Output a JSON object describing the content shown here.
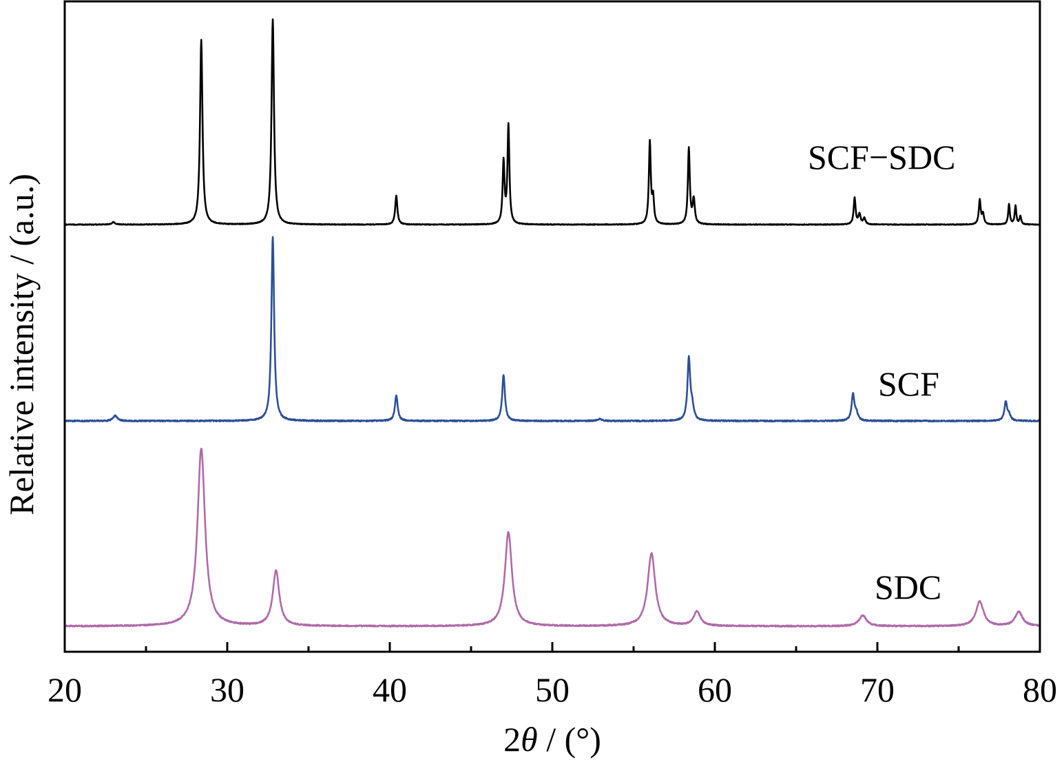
{
  "chart_data": {
    "type": "line",
    "xlabel_prefix": "2",
    "xlabel_theta": "θ",
    "xlabel_suffix": " / (°)",
    "ylabel": "Relative intensity / (a.u.)",
    "xlim": [
      20,
      80
    ],
    "x_ticks": [
      "20",
      "30",
      "40",
      "50",
      "60",
      "70",
      "80"
    ],
    "y_ticks_shown": false,
    "grid": false,
    "legend": "inline labels beside each trace",
    "series": [
      {
        "name": "SCF−SDC",
        "color": "#000000",
        "peaks": [
          {
            "x": 23.0,
            "h": 0.012,
            "w": 0.12
          },
          {
            "x": 28.4,
            "h": 0.9,
            "w": 0.09
          },
          {
            "x": 32.8,
            "h": 1.0,
            "w": 0.09
          },
          {
            "x": 40.4,
            "h": 0.14,
            "w": 0.08
          },
          {
            "x": 47.0,
            "h": 0.3,
            "w": 0.07
          },
          {
            "x": 47.3,
            "h": 0.48,
            "w": 0.07
          },
          {
            "x": 56.0,
            "h": 0.4,
            "w": 0.07
          },
          {
            "x": 56.2,
            "h": 0.12,
            "w": 0.07
          },
          {
            "x": 58.4,
            "h": 0.37,
            "w": 0.07
          },
          {
            "x": 58.7,
            "h": 0.12,
            "w": 0.08
          },
          {
            "x": 68.6,
            "h": 0.13,
            "w": 0.07
          },
          {
            "x": 68.9,
            "h": 0.05,
            "w": 0.08
          },
          {
            "x": 69.2,
            "h": 0.03,
            "w": 0.08
          },
          {
            "x": 76.3,
            "h": 0.12,
            "w": 0.07
          },
          {
            "x": 76.5,
            "h": 0.05,
            "w": 0.07
          },
          {
            "x": 78.1,
            "h": 0.1,
            "w": 0.06
          },
          {
            "x": 78.5,
            "h": 0.09,
            "w": 0.06
          },
          {
            "x": 78.8,
            "h": 0.04,
            "w": 0.06
          }
        ]
      },
      {
        "name": "SCF",
        "color": "#2c4f96",
        "peaks": [
          {
            "x": 23.1,
            "h": 0.03,
            "w": 0.15
          },
          {
            "x": 32.8,
            "h": 1.0,
            "w": 0.1
          },
          {
            "x": 40.4,
            "h": 0.14,
            "w": 0.1
          },
          {
            "x": 47.0,
            "h": 0.25,
            "w": 0.1
          },
          {
            "x": 52.9,
            "h": 0.01,
            "w": 0.15
          },
          {
            "x": 58.4,
            "h": 0.33,
            "w": 0.1
          },
          {
            "x": 58.6,
            "h": 0.07,
            "w": 0.12
          },
          {
            "x": 68.5,
            "h": 0.14,
            "w": 0.1
          },
          {
            "x": 68.7,
            "h": 0.04,
            "w": 0.12
          },
          {
            "x": 77.9,
            "h": 0.1,
            "w": 0.1
          },
          {
            "x": 78.1,
            "h": 0.03,
            "w": 0.12
          }
        ]
      },
      {
        "name": "SDC",
        "color": "#b06aa8",
        "peaks": [
          {
            "x": 28.4,
            "h": 1.0,
            "w": 0.28
          },
          {
            "x": 33.0,
            "h": 0.31,
            "w": 0.24
          },
          {
            "x": 47.3,
            "h": 0.53,
            "w": 0.26
          },
          {
            "x": 56.1,
            "h": 0.41,
            "w": 0.28
          },
          {
            "x": 58.9,
            "h": 0.08,
            "w": 0.26
          },
          {
            "x": 69.1,
            "h": 0.06,
            "w": 0.28
          },
          {
            "x": 76.3,
            "h": 0.14,
            "w": 0.28
          },
          {
            "x": 78.7,
            "h": 0.08,
            "w": 0.28
          }
        ]
      }
    ]
  }
}
